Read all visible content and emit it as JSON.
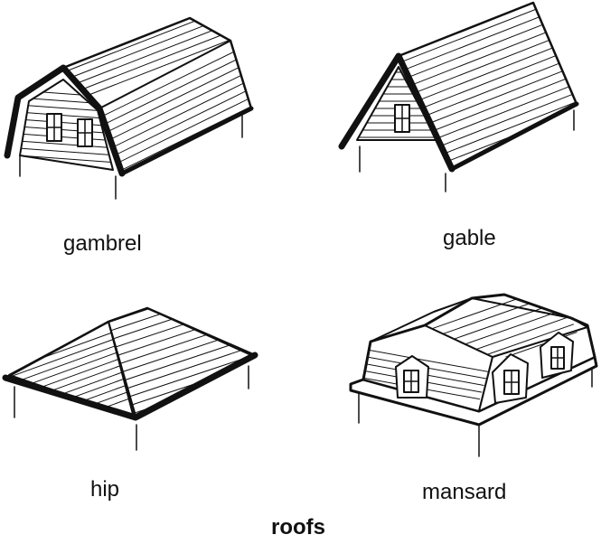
{
  "caption": "roofs",
  "roofs": [
    {
      "id": "gambrel",
      "label": "gambrel"
    },
    {
      "id": "gable",
      "label": "gable"
    },
    {
      "id": "hip",
      "label": "hip"
    },
    {
      "id": "mansard",
      "label": "mansard"
    }
  ],
  "colors": {
    "line": "#111111",
    "fill": "#ffffff"
  }
}
